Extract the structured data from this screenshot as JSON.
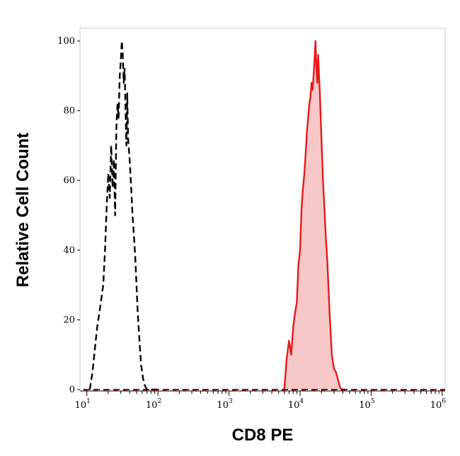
{
  "chart_data": {
    "type": "area",
    "xlabel": "CD8 PE",
    "ylabel": "Relative Cell Count",
    "xscale": "log",
    "xlim": [
      8,
      1100000
    ],
    "ylim": [
      0,
      100
    ],
    "grid": false,
    "legend": "none",
    "x_tick_labels": [
      {
        "value": 10,
        "base": "10",
        "exp": "1"
      },
      {
        "value": 100,
        "base": "10",
        "exp": "2"
      },
      {
        "value": 1000,
        "base": "10",
        "exp": "3"
      },
      {
        "value": 10000,
        "base": "10",
        "exp": "4"
      },
      {
        "value": 100000,
        "base": "10",
        "exp": "5"
      },
      {
        "value": 1000000,
        "base": "10",
        "exp": "6"
      }
    ],
    "y_tick_labels": [
      "0",
      "20",
      "40",
      "60",
      "80",
      "100"
    ],
    "y_tick_values": [
      0,
      20,
      40,
      60,
      80,
      100
    ],
    "series": [
      {
        "style": "dashed",
        "color": "#000000",
        "fill": "none",
        "x": [
          11,
          12,
          13,
          14,
          15,
          17,
          18,
          19,
          20,
          21,
          22,
          23,
          24,
          25,
          26,
          27,
          28,
          29,
          30,
          31,
          32,
          33,
          34,
          35,
          36,
          37,
          38,
          40,
          42,
          44,
          46,
          48,
          50,
          52,
          55,
          58,
          62,
          66,
          70,
          75,
          80,
          90,
          100
        ],
        "y": [
          0,
          5,
          12,
          18,
          22,
          30,
          40,
          52,
          62,
          55,
          70,
          58,
          66,
          50,
          75,
          82,
          78,
          90,
          94,
          100,
          96,
          88,
          92,
          80,
          70,
          85,
          72,
          66,
          58,
          50,
          44,
          38,
          30,
          22,
          14,
          7,
          3,
          1,
          0,
          0,
          0,
          0,
          0
        ]
      },
      {
        "style": "solid",
        "color": "#e41a1c",
        "fill": "#f8c8c8",
        "x": [
          6000,
          6500,
          7000,
          7500,
          8000,
          8500,
          9000,
          9500,
          10000,
          10500,
          11000,
          11500,
          12000,
          12500,
          13000,
          13500,
          14000,
          14500,
          15000,
          15500,
          16000,
          16500,
          17000,
          17500,
          18000,
          18500,
          19000,
          20000,
          21000,
          22000,
          23000,
          24000,
          25000,
          26000,
          27000,
          28000,
          30000,
          32000,
          34000,
          36000,
          38000,
          40000,
          43000
        ],
        "y": [
          0,
          9,
          14,
          10,
          18,
          22,
          25,
          36,
          40,
          52,
          58,
          62,
          68,
          74,
          78,
          82,
          84,
          88,
          86,
          90,
          95,
          100,
          92,
          88,
          96,
          90,
          85,
          72,
          60,
          52,
          44,
          38,
          30,
          22,
          16,
          10,
          6,
          5,
          3,
          1,
          0,
          0,
          0
        ]
      }
    ]
  }
}
